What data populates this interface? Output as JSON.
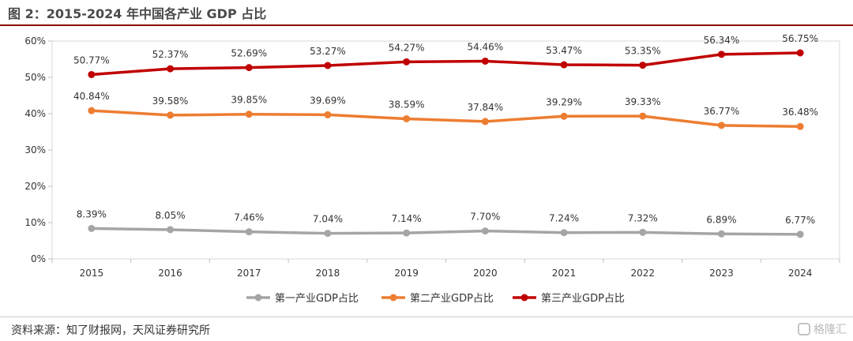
{
  "header": {
    "title": "图 2：2015-2024 年中国各产业 GDP 占比"
  },
  "footer": {
    "source": "资料来源：知了财报网，天风证券研究所",
    "watermark": "格隆汇"
  },
  "chart_data": {
    "type": "line",
    "title": "",
    "xlabel": "",
    "ylabel": "",
    "x": [
      "2015",
      "2016",
      "2017",
      "2018",
      "2019",
      "2020",
      "2021",
      "2022",
      "2023",
      "2024"
    ],
    "ylim": [
      0,
      60
    ],
    "yticks": [
      0,
      10,
      20,
      30,
      40,
      50,
      60
    ],
    "ytick_labels": [
      "0%",
      "10%",
      "20%",
      "30%",
      "40%",
      "50%",
      "60%"
    ],
    "grid": false,
    "legend": "bottom-center",
    "series": [
      {
        "name": "第一产业GDP占比",
        "color": "#a5a5a5",
        "values": [
          8.39,
          8.05,
          7.46,
          7.04,
          7.14,
          7.7,
          7.24,
          7.32,
          6.89,
          6.77
        ],
        "labels": [
          "8.39%",
          "8.05%",
          "7.46%",
          "7.04%",
          "7.14%",
          "7.70%",
          "7.24%",
          "7.32%",
          "6.89%",
          "6.77%"
        ]
      },
      {
        "name": "第二产业GDP占比",
        "color": "#ed7d31",
        "values": [
          40.84,
          39.58,
          39.85,
          39.69,
          38.59,
          37.84,
          39.29,
          39.33,
          36.77,
          36.48
        ],
        "labels": [
          "40.84%",
          "39.58%",
          "39.85%",
          "39.69%",
          "38.59%",
          "37.84%",
          "39.29%",
          "39.33%",
          "36.77%",
          "36.48%"
        ]
      },
      {
        "name": "第三产业GDP占比",
        "color": "#c00000",
        "values": [
          50.77,
          52.37,
          52.69,
          53.27,
          54.27,
          54.46,
          53.47,
          53.35,
          56.34,
          56.75
        ],
        "labels": [
          "50.77%",
          "52.37%",
          "52.69%",
          "53.27%",
          "54.27%",
          "54.46%",
          "53.47%",
          "53.35%",
          "56.34%",
          "56.75%"
        ]
      }
    ]
  }
}
